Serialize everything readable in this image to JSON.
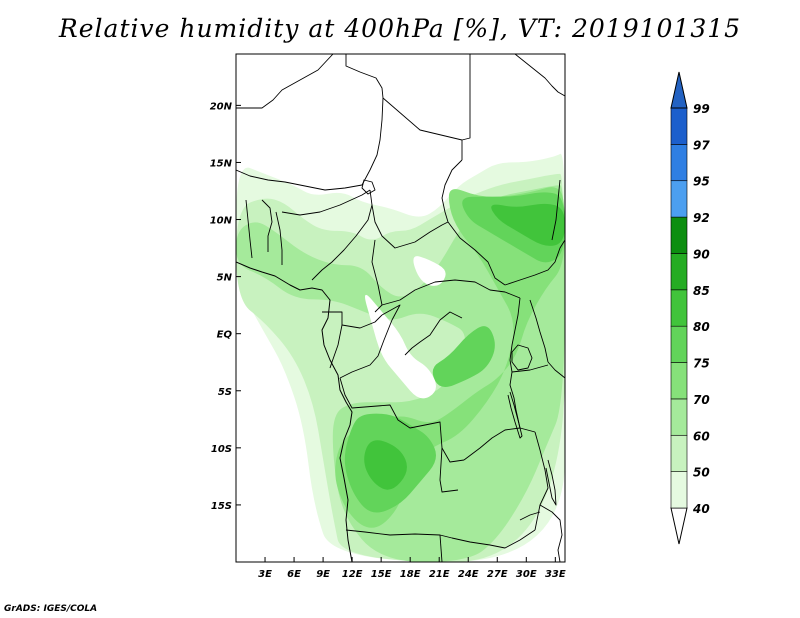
{
  "title": "Relative humidity at 400hPa [%], VT: 2019101315",
  "credit": "GrADS: IGES/COLA",
  "map": {
    "lon_range": [
      0,
      34
    ],
    "lat_range": [
      -20,
      24.5
    ],
    "x_ticks": [
      {
        "value": 3,
        "label": "3E"
      },
      {
        "value": 6,
        "label": "6E"
      },
      {
        "value": 9,
        "label": "9E"
      },
      {
        "value": 12,
        "label": "12E"
      },
      {
        "value": 15,
        "label": "15E"
      },
      {
        "value": 18,
        "label": "18E"
      },
      {
        "value": 21,
        "label": "21E"
      },
      {
        "value": 24,
        "label": "24E"
      },
      {
        "value": 27,
        "label": "27E"
      },
      {
        "value": 30,
        "label": "30E"
      },
      {
        "value": 33,
        "label": "33E"
      }
    ],
    "y_ticks": [
      {
        "value": 20,
        "label": "20N"
      },
      {
        "value": 15,
        "label": "15N"
      },
      {
        "value": 10,
        "label": "10N"
      },
      {
        "value": 5,
        "label": "5N"
      },
      {
        "value": 0,
        "label": "EQ"
      },
      {
        "value": -5,
        "label": "5S"
      },
      {
        "value": -10,
        "label": "10S"
      },
      {
        "value": -15,
        "label": "15S"
      }
    ]
  },
  "colorbar": {
    "levels": [
      "40",
      "50",
      "60",
      "70",
      "75",
      "80",
      "85",
      "90",
      "92",
      "95",
      "97",
      "99"
    ],
    "colors": [
      "#ffffff",
      "#e5fae0",
      "#c8f2bf",
      "#a5ea9b",
      "#86e17a",
      "#62d45a",
      "#41c43b",
      "#25ac23",
      "#0d8e10",
      "#4c9ff0",
      "#2f7fe3",
      "#1c5fcc",
      "#2362c2"
    ]
  },
  "fields": {
    "humid_regions": [
      {
        "level": 1,
        "points": [
          [
            0,
            15
          ],
          [
            3,
            14
          ],
          [
            6,
            13
          ],
          [
            8,
            12
          ],
          [
            11,
            12.5
          ],
          [
            13,
            11.5
          ],
          [
            16,
            11
          ],
          [
            19,
            10
          ],
          [
            21,
            11
          ],
          [
            23,
            13
          ],
          [
            25,
            14
          ],
          [
            27,
            15
          ],
          [
            30,
            15
          ],
          [
            33,
            15.5
          ],
          [
            34,
            16
          ],
          [
            34,
            2
          ],
          [
            31,
            2
          ],
          [
            31,
            -2
          ],
          [
            34,
            -2
          ],
          [
            34,
            -20
          ],
          [
            10,
            -20
          ],
          [
            8,
            -15
          ],
          [
            7,
            -8
          ],
          [
            5,
            -3
          ],
          [
            3,
            0
          ],
          [
            1,
            3
          ],
          [
            0,
            5
          ]
        ]
      },
      {
        "level": 2,
        "points": [
          [
            0,
            11
          ],
          [
            3,
            12
          ],
          [
            5,
            11.5
          ],
          [
            7,
            10
          ],
          [
            9,
            9
          ],
          [
            12,
            9
          ],
          [
            14,
            8
          ],
          [
            16,
            9
          ],
          [
            18,
            9
          ],
          [
            20,
            10
          ],
          [
            22,
            11
          ],
          [
            24,
            12
          ],
          [
            27,
            13
          ],
          [
            30,
            13.5
          ],
          [
            33,
            14
          ],
          [
            34,
            14
          ],
          [
            34,
            -20
          ],
          [
            11,
            -20
          ],
          [
            10,
            -16
          ],
          [
            9,
            -11
          ],
          [
            8,
            -6
          ],
          [
            6,
            -2
          ],
          [
            3,
            1
          ],
          [
            0,
            3
          ]
        ]
      },
      {
        "level": 3,
        "points": [
          [
            0,
            9
          ],
          [
            2,
            10
          ],
          [
            4,
            9
          ],
          [
            7,
            7
          ],
          [
            10,
            6
          ],
          [
            13,
            6
          ],
          [
            15,
            4
          ],
          [
            17,
            3
          ],
          [
            19,
            4
          ],
          [
            21,
            6
          ],
          [
            23,
            9
          ],
          [
            25,
            11
          ],
          [
            27,
            12
          ],
          [
            30,
            12.5
          ],
          [
            33,
            13
          ],
          [
            34,
            13
          ],
          [
            34,
            -6
          ],
          [
            32,
            -10
          ],
          [
            30,
            -14
          ],
          [
            27,
            -18
          ],
          [
            24,
            -20
          ],
          [
            15,
            -20
          ],
          [
            11,
            -16
          ],
          [
            10,
            -11
          ],
          [
            10,
            -7
          ],
          [
            12,
            -6
          ],
          [
            15,
            -6
          ],
          [
            18,
            -6
          ],
          [
            21,
            -5
          ],
          [
            23,
            -3
          ],
          [
            24,
            0
          ],
          [
            22,
            1
          ],
          [
            19,
            2
          ],
          [
            16,
            1
          ],
          [
            13,
            2
          ],
          [
            10,
            3
          ],
          [
            6,
            3
          ],
          [
            3,
            5
          ],
          [
            0,
            6
          ]
        ]
      },
      {
        "level": 4,
        "points": [
          [
            22,
            13
          ],
          [
            25,
            12
          ],
          [
            28,
            12
          ],
          [
            31,
            12.5
          ],
          [
            33,
            13
          ],
          [
            34,
            12
          ],
          [
            34,
            6
          ],
          [
            32,
            4
          ],
          [
            30,
            1
          ],
          [
            29,
            -2
          ],
          [
            27,
            -4
          ],
          [
            25,
            -5
          ],
          [
            22,
            -7
          ],
          [
            20,
            -8
          ],
          [
            17,
            -7
          ],
          [
            14,
            -8
          ],
          [
            11,
            -9
          ],
          [
            10,
            -12
          ],
          [
            11,
            -15
          ],
          [
            13,
            -17
          ],
          [
            15,
            -17
          ],
          [
            17,
            -15
          ],
          [
            18,
            -12
          ],
          [
            20,
            -10
          ],
          [
            23,
            -9
          ],
          [
            26,
            -6
          ],
          [
            28,
            -3
          ],
          [
            29,
            1
          ],
          [
            27,
            4
          ],
          [
            25,
            7
          ],
          [
            23,
            9
          ],
          [
            22,
            11
          ]
        ]
      },
      {
        "level": 5,
        "points": [
          [
            23,
            12
          ],
          [
            26,
            12
          ],
          [
            29,
            12
          ],
          [
            32,
            12.5
          ],
          [
            34,
            12
          ],
          [
            34,
            7
          ],
          [
            32,
            6
          ],
          [
            30,
            7
          ],
          [
            28,
            8
          ],
          [
            26,
            9
          ],
          [
            24,
            10
          ]
        ]
      },
      {
        "level": 5,
        "points": [
          [
            13,
            -7
          ],
          [
            16,
            -7
          ],
          [
            18,
            -8
          ],
          [
            20,
            -9
          ],
          [
            21,
            -11
          ],
          [
            19,
            -13
          ],
          [
            17,
            -15
          ],
          [
            14,
            -16
          ],
          [
            12,
            -14
          ],
          [
            11,
            -11
          ],
          [
            12,
            -8
          ]
        ]
      },
      {
        "level": 5,
        "points": [
          [
            21,
            -5
          ],
          [
            24,
            -4
          ],
          [
            26,
            -3
          ],
          [
            27,
            -1
          ],
          [
            26,
            1
          ],
          [
            24,
            0
          ],
          [
            22,
            -2
          ],
          [
            20,
            -3
          ]
        ]
      },
      {
        "level": 6,
        "points": [
          [
            26,
            11.5
          ],
          [
            29,
            11
          ],
          [
            32,
            11.5
          ],
          [
            34,
            11
          ],
          [
            34,
            8
          ],
          [
            32,
            7.5
          ],
          [
            29,
            9
          ],
          [
            27,
            10
          ]
        ]
      },
      {
        "level": 6,
        "points": [
          [
            14,
            -9
          ],
          [
            17,
            -10
          ],
          [
            18,
            -12
          ],
          [
            16,
            -14
          ],
          [
            14,
            -13
          ],
          [
            13,
            -11
          ]
        ]
      }
    ],
    "dry_regions": [
      {
        "points": [
          [
            6,
            24.5
          ],
          [
            6,
            19
          ],
          [
            7,
            17
          ],
          [
            10,
            16
          ],
          [
            13,
            15.5
          ],
          [
            16,
            15
          ],
          [
            19,
            15
          ],
          [
            21,
            16
          ],
          [
            22,
            18
          ],
          [
            23,
            20
          ],
          [
            24,
            24.5
          ]
        ]
      },
      {
        "points": [
          [
            4,
            19
          ],
          [
            7,
            20
          ],
          [
            9,
            22
          ],
          [
            10,
            24.5
          ],
          [
            3,
            24.5
          ]
        ]
      },
      {
        "points": [
          [
            13,
            4
          ],
          [
            15,
            2
          ],
          [
            17,
            0
          ],
          [
            18,
            -2
          ],
          [
            20,
            -3
          ],
          [
            21,
            -5
          ],
          [
            19,
            -6
          ],
          [
            17,
            -4
          ],
          [
            15,
            -2
          ],
          [
            14,
            1
          ]
        ]
      },
      {
        "points": [
          [
            18,
            7
          ],
          [
            20,
            6.5
          ],
          [
            22,
            5.5
          ],
          [
            21,
            4
          ],
          [
            19,
            4.5
          ]
        ]
      }
    ]
  }
}
